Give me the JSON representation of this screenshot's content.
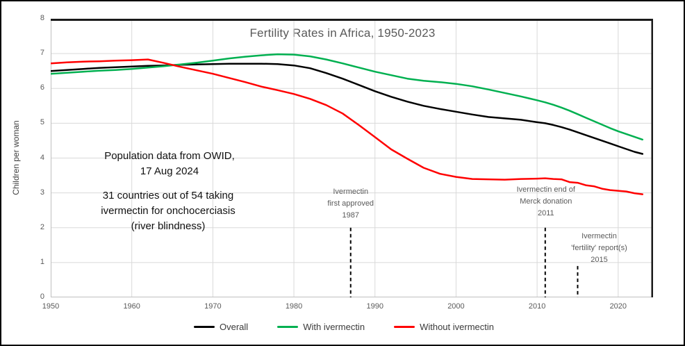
{
  "colors": {
    "overall": "#000000",
    "with_ivermectin": "#00B050",
    "without_ivermectin": "#FF0000",
    "gridline": "#D9D9D9",
    "axis_line": "#BFBFBF",
    "plot_border_dark": "#1a1a1a",
    "tick_text": "#595959",
    "title_text": "#595959",
    "event_line": "#000000"
  },
  "annotations": {
    "owid": {
      "line1": "Population data from OWID,",
      "line2": "17 Aug 2024"
    },
    "countries": {
      "line1": "31 countries out of 54 taking",
      "line2": "ivermectin for onchocerciasis",
      "line3": "(river blindness)"
    }
  },
  "legend": [
    {
      "label": "Overall",
      "color": "#000000"
    },
    {
      "label": "With ivermectin",
      "color": "#00B050"
    },
    {
      "label": "Without ivermectin",
      "color": "#FF0000"
    }
  ],
  "chart_data": {
    "type": "line",
    "title": "Fertility Rates in Africa, 1950-2023",
    "xlabel": "",
    "ylabel": "Children per woman",
    "xlim": [
      1950,
      2024.3
    ],
    "ylim": [
      0,
      8
    ],
    "x_ticks": [
      1950,
      1960,
      1970,
      1980,
      1990,
      2000,
      2010,
      2020
    ],
    "y_ticks": [
      0,
      1,
      2,
      3,
      4,
      5,
      6,
      7,
      8
    ],
    "grid": true,
    "legend_position": "bottom",
    "x": [
      1950,
      1952,
      1954,
      1956,
      1958,
      1960,
      1962,
      1964,
      1966,
      1968,
      1970,
      1972,
      1974,
      1976,
      1978,
      1980,
      1982,
      1984,
      1986,
      1988,
      1990,
      1992,
      1994,
      1996,
      1998,
      2000,
      2002,
      2004,
      2006,
      2008,
      2010,
      2011,
      2012,
      2013,
      2014,
      2015,
      2016,
      2017,
      2018,
      2019,
      2020,
      2021,
      2022,
      2023
    ],
    "series": [
      {
        "name": "Overall",
        "color": "#000000",
        "values": [
          6.5,
          6.53,
          6.56,
          6.59,
          6.61,
          6.63,
          6.65,
          6.66,
          6.68,
          6.69,
          6.7,
          6.71,
          6.71,
          6.71,
          6.7,
          6.66,
          6.58,
          6.44,
          6.28,
          6.1,
          5.92,
          5.76,
          5.62,
          5.5,
          5.41,
          5.33,
          5.25,
          5.18,
          5.14,
          5.1,
          5.03,
          5.0,
          4.95,
          4.89,
          4.82,
          4.74,
          4.66,
          4.58,
          4.5,
          4.42,
          4.34,
          4.26,
          4.18,
          4.12
        ]
      },
      {
        "name": "With ivermectin",
        "color": "#00B050",
        "values": [
          6.42,
          6.45,
          6.48,
          6.51,
          6.53,
          6.56,
          6.6,
          6.64,
          6.69,
          6.74,
          6.8,
          6.86,
          6.91,
          6.95,
          6.98,
          6.97,
          6.92,
          6.83,
          6.72,
          6.6,
          6.48,
          6.38,
          6.28,
          6.22,
          6.18,
          6.13,
          6.06,
          5.97,
          5.87,
          5.77,
          5.66,
          5.6,
          5.53,
          5.45,
          5.36,
          5.26,
          5.16,
          5.06,
          4.96,
          4.86,
          4.77,
          4.69,
          4.61,
          4.53
        ]
      },
      {
        "name": "Without ivermectin",
        "color": "#FF0000",
        "values": [
          6.72,
          6.75,
          6.77,
          6.78,
          6.8,
          6.81,
          6.83,
          6.73,
          6.62,
          6.52,
          6.42,
          6.3,
          6.18,
          6.05,
          5.95,
          5.84,
          5.7,
          5.52,
          5.28,
          4.95,
          4.6,
          4.25,
          3.98,
          3.72,
          3.55,
          3.46,
          3.4,
          3.39,
          3.38,
          3.4,
          3.41,
          3.42,
          3.4,
          3.39,
          3.31,
          3.29,
          3.22,
          3.19,
          3.12,
          3.08,
          3.06,
          3.04,
          2.99,
          2.96
        ]
      }
    ],
    "event_lines": [
      {
        "year": 1987,
        "y_top": 2.0,
        "label_lines": [
          "Ivermectin",
          "first approved",
          "1987"
        ],
        "label_dx": 0,
        "label_top": 266
      },
      {
        "year": 2011,
        "y_top": 2.0,
        "label_lines": [
          "Ivermectin end of",
          "Merck donation",
          "2011"
        ],
        "label_dx": 1,
        "label_top": 263
      },
      {
        "year": 2015,
        "y_top": 0.9,
        "label_lines": [
          "Ivermectin",
          "'fertility' report(s)",
          "2015"
        ],
        "label_dx": 31,
        "label_top": 330
      }
    ]
  }
}
